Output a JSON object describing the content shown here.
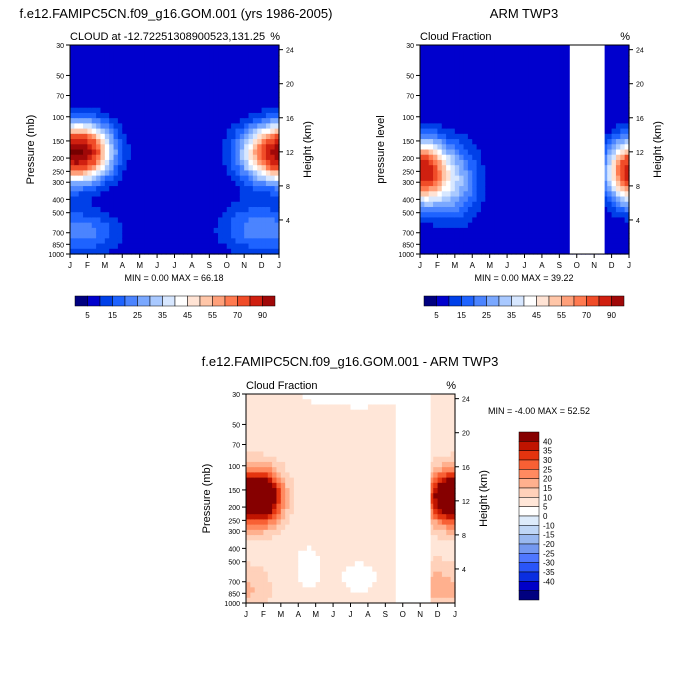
{
  "colors": {
    "absolute": [
      "#000080",
      "#0000CD",
      "#0040E8",
      "#1E63FF",
      "#4B84FF",
      "#7AA8FF",
      "#A9C9FF",
      "#D7E7FF",
      "#FFFFFF",
      "#FFE3D4",
      "#FFC6A8",
      "#FFA07A",
      "#FF7A50",
      "#F04C28",
      "#D02010",
      "#A00808",
      "#760000"
    ],
    "difference": [
      "#000080",
      "#0000C8",
      "#0A2EE0",
      "#2A55F8",
      "#4F77FF",
      "#7498F0",
      "#99B8F0",
      "#BFD6F6",
      "#DDEBFB",
      "#FFFFFF",
      "#FFE6D8",
      "#FFD1BA",
      "#FFB08E",
      "#FF8A60",
      "#F86034",
      "#E4340F",
      "#C01400",
      "#860000"
    ]
  },
  "chart_data": [
    {
      "type": "heatmap",
      "title": "f.e12.FAMIPC5CN.f09_g16.GOM.001 (yrs 1986-2005)",
      "left_label": "CLOUD at -12.72251308900523,131.25",
      "right_label": "%",
      "xlabel": "",
      "ylabel": "Pressure (mb)",
      "ylabel_right": "Height (km)",
      "x_ticks": [
        "J",
        "F",
        "M",
        "A",
        "M",
        "J",
        "J",
        "A",
        "S",
        "O",
        "N",
        "D",
        "J"
      ],
      "y_ticks": [
        "30",
        "50",
        "70",
        "100",
        "150",
        "200",
        "250",
        "300",
        "400",
        "500",
        "700",
        "850",
        "1000"
      ],
      "y_ticks_right": [
        "24",
        "20",
        "16",
        "12",
        "8",
        "4"
      ],
      "stats": "MIN = 0.00 MAX = 66.18",
      "colorbar_ticks": [
        "5",
        "15",
        "25",
        "35",
        "45",
        "55",
        "70",
        "90"
      ],
      "colorbar_levels": [
        0,
        5,
        10,
        15,
        20,
        25,
        30,
        35,
        40,
        45,
        50,
        55,
        60,
        70,
        80,
        90
      ],
      "blobs": [
        {
          "month": 0.9,
          "pressure": 180,
          "peak": 66,
          "month_spread": 1.1,
          "pressure_spread": 0.32
        },
        {
          "month": 11.3,
          "pressure": 185,
          "peak": 50,
          "month_spread": 1.2,
          "pressure_spread": 0.32
        },
        {
          "month": 1.2,
          "pressure": 700,
          "peak": 14,
          "month_spread": 1.3,
          "pressure_spread": 0.25
        },
        {
          "month": 10.5,
          "pressure": 650,
          "peak": 16,
          "month_spread": 1.4,
          "pressure_spread": 0.3
        }
      ]
    },
    {
      "type": "heatmap",
      "title": "ARM TWP3",
      "left_label": "Cloud Fraction",
      "right_label": "%",
      "xlabel": "",
      "ylabel": "pressure level",
      "ylabel_right": "Height (km)",
      "x_ticks": [
        "J",
        "F",
        "M",
        "A",
        "M",
        "J",
        "J",
        "A",
        "S",
        "O",
        "N",
        "D",
        "J"
      ],
      "y_ticks": [
        "30",
        "50",
        "70",
        "100",
        "150",
        "200",
        "250",
        "300",
        "400",
        "500",
        "700",
        "850",
        "1000"
      ],
      "y_ticks_right": [
        "24",
        "20",
        "16",
        "12",
        "8",
        "4"
      ],
      "stats": "MIN = 0.00 MAX = 39.22",
      "colorbar_ticks": [
        "5",
        "15",
        "25",
        "35",
        "45",
        "55",
        "70",
        "90"
      ],
      "colorbar_levels": [
        0,
        5,
        10,
        15,
        20,
        25,
        30,
        35,
        40,
        45,
        50,
        55,
        60,
        70,
        80,
        90
      ],
      "missing_months": [
        8.6,
        10.6
      ],
      "blobs": [
        {
          "month": 0.3,
          "pressure": 250,
          "peak": 39,
          "month_spread": 0.9,
          "pressure_spread": 0.35
        },
        {
          "month": 11.9,
          "pressure": 250,
          "peak": 39,
          "month_spread": 0.9,
          "pressure_spread": 0.35
        },
        {
          "month": 2.0,
          "pressure": 300,
          "peak": 24,
          "month_spread": 1.0,
          "pressure_spread": 0.45
        }
      ]
    },
    {
      "type": "heatmap",
      "title": "f.e12.FAMIPC5CN.f09_g16.GOM.001 - ARM TWP3",
      "left_label": "Cloud Fraction",
      "right_label": "%",
      "xlabel": "",
      "ylabel": "Pressure (mb)",
      "ylabel_right": "Height (km)",
      "x_ticks": [
        "J",
        "F",
        "M",
        "A",
        "M",
        "J",
        "J",
        "A",
        "S",
        "O",
        "N",
        "D",
        "J"
      ],
      "y_ticks": [
        "30",
        "50",
        "70",
        "100",
        "150",
        "200",
        "250",
        "300",
        "400",
        "500",
        "700",
        "850",
        "1000"
      ],
      "y_ticks_right": [
        "24",
        "20",
        "16",
        "12",
        "8",
        "4"
      ],
      "stats": "MIN = -4.00 MAX = 52.52",
      "colorbar_ticks": [
        "40",
        "35",
        "30",
        "25",
        "20",
        "15",
        "10",
        "5",
        "0",
        "-10",
        "-15",
        "-20",
        "-25",
        "-30",
        "-35",
        "-40"
      ],
      "colorbar_levels": [
        -45,
        -40,
        -35,
        -30,
        -25,
        -20,
        -15,
        -10,
        -5,
        0,
        5,
        10,
        15,
        20,
        25,
        30,
        35,
        40,
        45
      ],
      "missing_months": [
        8.6,
        10.6
      ],
      "background": 2,
      "blobs": [
        {
          "month": 1.0,
          "pressure": 170,
          "peak": 50,
          "month_spread": 0.75,
          "pressure_spread": 0.3
        },
        {
          "month": 11.5,
          "pressure": 170,
          "peak": 46,
          "month_spread": 0.75,
          "pressure_spread": 0.3
        },
        {
          "month": 0.3,
          "pressure": 800,
          "peak": 8,
          "month_spread": 0.8,
          "pressure_spread": 0.3
        },
        {
          "month": 10.8,
          "pressure": 750,
          "peak": 9,
          "month_spread": 0.6,
          "pressure_spread": 0.3
        },
        {
          "month": 6.5,
          "pressure": 30,
          "peak": -6,
          "month_spread": 2.2,
          "pressure_spread": 0.15
        },
        {
          "month": 3.6,
          "pressure": 550,
          "peak": -5,
          "month_spread": 0.5,
          "pressure_spread": 0.25
        },
        {
          "month": 6.5,
          "pressure": 650,
          "peak": -4,
          "month_spread": 0.8,
          "pressure_spread": 0.2
        }
      ]
    }
  ]
}
